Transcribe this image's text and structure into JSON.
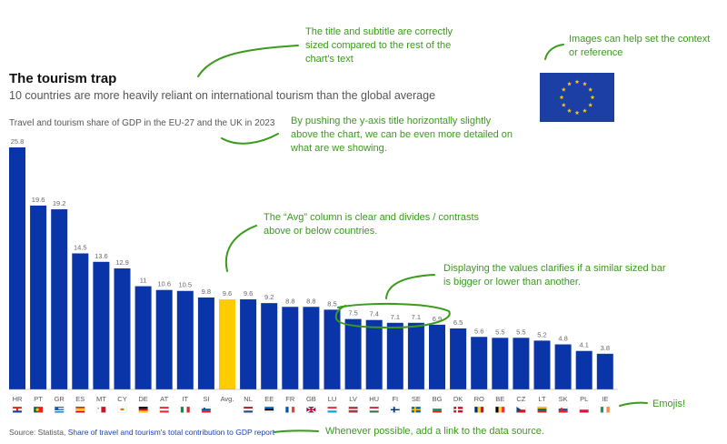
{
  "header": {
    "title": "The tourism trap",
    "subtitle": "10 countries are more heavily reliant on international tourism than the global average",
    "y_title": "Travel and tourism share of GDP in the EU-27 and the UK in 2023"
  },
  "source": {
    "prefix": "Source: Statista,",
    "link_text": "Share of travel and tourism's total contribution to GDP report"
  },
  "annotations": {
    "title_note": "The title and subtitle are correctly sized compared to the rest of the chart's text",
    "image_note": "Images can help set the context or reference",
    "ytitle_note": "By pushing the y-axis title horizontally slightly above the chart, we can be even more detailed on what are we showing.",
    "avg_note": "The “Avg” column is clear and divides / contrasts above or below countries.",
    "values_note": "Displaying the values clarifies if a similar sized bar is bigger or lower than another.",
    "emoji_note": "Emojis!",
    "source_note": "Whenever possible, add a link to the data source."
  },
  "colors": {
    "bar": "#0a35a8",
    "avg_bar": "#ffcc00",
    "annotation": "#3a9a1c",
    "eu_blue": "#1c3fa6",
    "eu_star": "#ffcc00"
  },
  "chart_data": {
    "type": "bar",
    "categories": [
      "HR",
      "PT",
      "GR",
      "ES",
      "MT",
      "CY",
      "DE",
      "AT",
      "IT",
      "SI",
      "Avg.",
      "NL",
      "EE",
      "FR",
      "GB",
      "LU",
      "LV",
      "HU",
      "FI",
      "SE",
      "BG",
      "DK",
      "RO",
      "BE",
      "CZ",
      "LT",
      "SK",
      "PL",
      "IE"
    ],
    "values": [
      25.8,
      19.6,
      19.2,
      14.5,
      13.6,
      12.9,
      11,
      10.6,
      10.5,
      9.8,
      9.6,
      9.6,
      9.2,
      8.8,
      8.8,
      8.5,
      7.5,
      7.4,
      7.1,
      7.1,
      6.9,
      6.5,
      5.6,
      5.5,
      5.5,
      5.2,
      4.8,
      4.1,
      3.8
    ],
    "value_labels": [
      "25.8",
      "19.6",
      "19.2",
      "14.5",
      "13.6",
      "12.9",
      "11",
      "10.6",
      "10.5",
      "9.8",
      "9.6",
      "9.6",
      "9.2",
      "8.8",
      "8.8",
      "8.5",
      "7.5",
      "7.4",
      "7.1",
      "7.1",
      "6.9",
      "6.5",
      "5.6",
      "5.5",
      "5.5",
      "5.2",
      "4.8",
      "4.1",
      "3.8"
    ],
    "highlight_category": "Avg.",
    "flag_icons": [
      "croatia-flag-icon",
      "portugal-flag-icon",
      "greece-flag-icon",
      "spain-flag-icon",
      "malta-flag-icon",
      "cyprus-flag-icon",
      "germany-flag-icon",
      "austria-flag-icon",
      "italy-flag-icon",
      "slovenia-flag-icon",
      "",
      "netherlands-flag-icon",
      "estonia-flag-icon",
      "france-flag-icon",
      "uk-flag-icon",
      "luxembourg-flag-icon",
      "latvia-flag-icon",
      "hungary-flag-icon",
      "finland-flag-icon",
      "sweden-flag-icon",
      "bulgaria-flag-icon",
      "denmark-flag-icon",
      "romania-flag-icon",
      "belgium-flag-icon",
      "czechia-flag-icon",
      "lithuania-flag-icon",
      "slovakia-flag-icon",
      "poland-flag-icon",
      "ireland-flag-icon"
    ],
    "ylim": [
      0,
      27
    ],
    "grid": false,
    "legend": "none"
  }
}
